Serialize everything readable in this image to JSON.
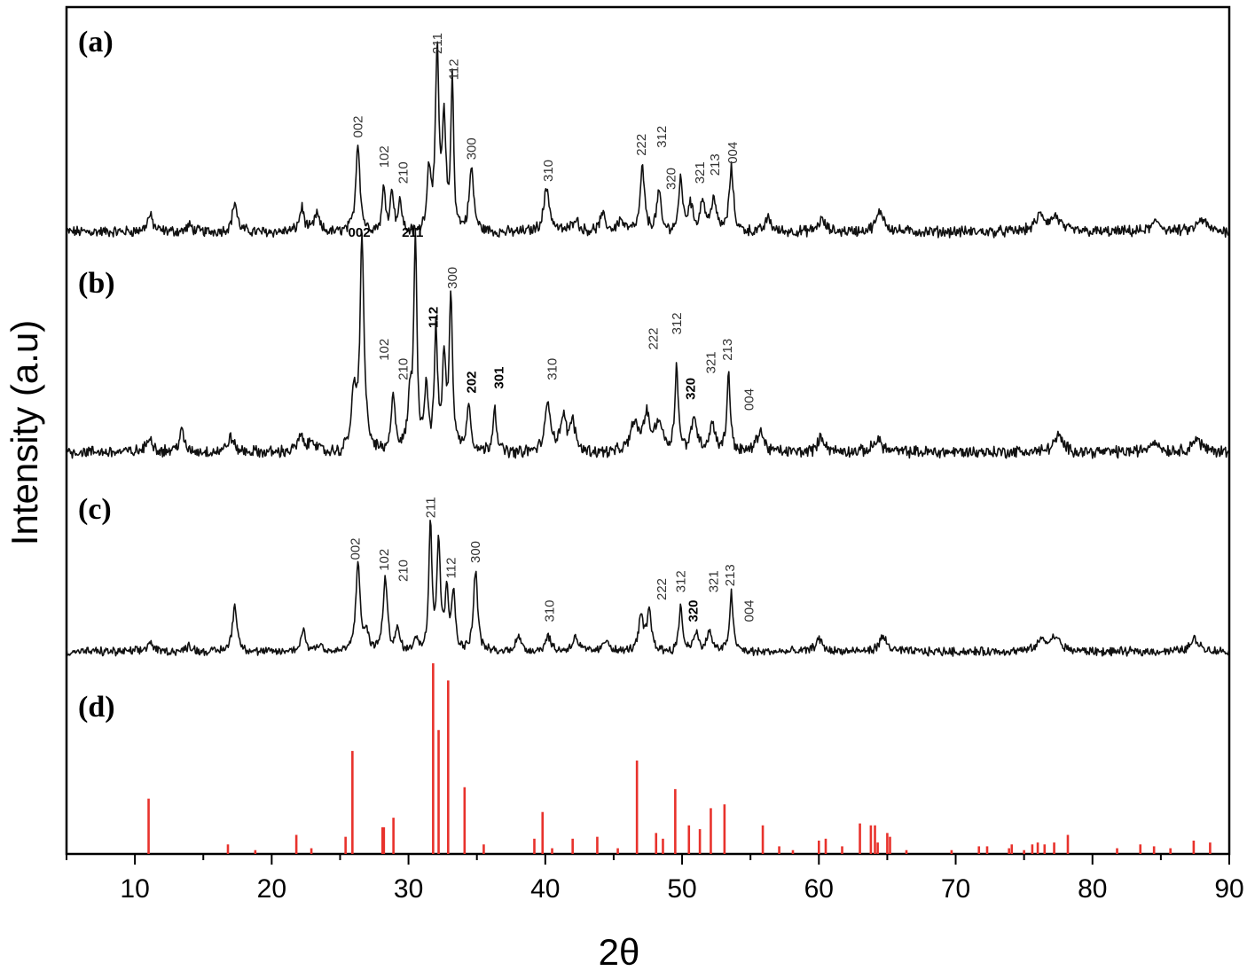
{
  "chart_data": {
    "type": "line",
    "xlabel": "2θ",
    "ylabel": "Intensity (a.u)",
    "xlim": [
      5,
      90
    ],
    "xticks": [
      10,
      20,
      30,
      40,
      50,
      60,
      70,
      80,
      90
    ],
    "grid": false,
    "panels": [
      {
        "label": "(a)",
        "baseline": 0.03,
        "peaks": [
          {
            "x": 11.1,
            "h": 0.08,
            "w": 0.25
          },
          {
            "x": 14.0,
            "h": 0.03,
            "w": 0.25
          },
          {
            "x": 17.3,
            "h": 0.15,
            "w": 0.2
          },
          {
            "x": 22.2,
            "h": 0.12,
            "w": 0.2
          },
          {
            "x": 23.3,
            "h": 0.09,
            "w": 0.2
          },
          {
            "x": 26.3,
            "h": 0.45,
            "w": 0.18
          },
          {
            "x": 28.2,
            "h": 0.22,
            "w": 0.15
          },
          {
            "x": 28.8,
            "h": 0.2,
            "w": 0.15
          },
          {
            "x": 29.4,
            "h": 0.15,
            "w": 0.15
          },
          {
            "x": 31.5,
            "h": 0.3,
            "w": 0.18
          },
          {
            "x": 32.1,
            "h": 0.88,
            "w": 0.15
          },
          {
            "x": 32.6,
            "h": 0.52,
            "w": 0.15
          },
          {
            "x": 33.2,
            "h": 0.75,
            "w": 0.12
          },
          {
            "x": 34.6,
            "h": 0.32,
            "w": 0.2
          },
          {
            "x": 40.1,
            "h": 0.22,
            "w": 0.25
          },
          {
            "x": 42.2,
            "h": 0.07,
            "w": 0.25
          },
          {
            "x": 44.2,
            "h": 0.08,
            "w": 0.25
          },
          {
            "x": 45.5,
            "h": 0.06,
            "w": 0.25
          },
          {
            "x": 47.1,
            "h": 0.32,
            "w": 0.18
          },
          {
            "x": 48.3,
            "h": 0.2,
            "w": 0.18
          },
          {
            "x": 49.9,
            "h": 0.28,
            "w": 0.15
          },
          {
            "x": 50.6,
            "h": 0.14,
            "w": 0.2
          },
          {
            "x": 51.5,
            "h": 0.16,
            "w": 0.2
          },
          {
            "x": 52.3,
            "h": 0.17,
            "w": 0.2
          },
          {
            "x": 53.6,
            "h": 0.32,
            "w": 0.18
          },
          {
            "x": 56.3,
            "h": 0.07,
            "w": 0.25
          },
          {
            "x": 60.2,
            "h": 0.06,
            "w": 0.3
          },
          {
            "x": 64.5,
            "h": 0.1,
            "w": 0.35
          },
          {
            "x": 76.2,
            "h": 0.08,
            "w": 0.4
          },
          {
            "x": 77.3,
            "h": 0.07,
            "w": 0.4
          },
          {
            "x": 84.7,
            "h": 0.05,
            "w": 0.4
          },
          {
            "x": 88.0,
            "h": 0.06,
            "w": 0.4
          }
        ],
        "annotations": [
          {
            "text": "002",
            "x": 26.3,
            "h": 0.5
          },
          {
            "text": "102",
            "x": 28.2,
            "h": 0.35
          },
          {
            "text": "210",
            "x": 29.6,
            "h": 0.27
          },
          {
            "text": "211",
            "x": 32.1,
            "h": 0.92
          },
          {
            "text": "112",
            "x": 33.3,
            "h": 0.79
          },
          {
            "text": "300",
            "x": 34.6,
            "h": 0.39
          },
          {
            "text": "310",
            "x": 40.2,
            "h": 0.28
          },
          {
            "text": "222",
            "x": 47.0,
            "h": 0.41
          },
          {
            "text": "312",
            "x": 48.5,
            "h": 0.45
          },
          {
            "text": "320",
            "x": 49.2,
            "h": 0.24
          },
          {
            "text": "321",
            "x": 51.3,
            "h": 0.27
          },
          {
            "text": "213",
            "x": 52.4,
            "h": 0.31
          },
          {
            "text": "004",
            "x": 53.7,
            "h": 0.37
          }
        ]
      },
      {
        "label": "(b)",
        "baseline": 0.03,
        "peaks": [
          {
            "x": 11.1,
            "h": 0.07,
            "w": 0.25
          },
          {
            "x": 13.4,
            "h": 0.1,
            "w": 0.2
          },
          {
            "x": 17.0,
            "h": 0.07,
            "w": 0.25
          },
          {
            "x": 22.1,
            "h": 0.07,
            "w": 0.25
          },
          {
            "x": 23.0,
            "h": 0.06,
            "w": 0.25
          },
          {
            "x": 26.0,
            "h": 0.25,
            "w": 0.2
          },
          {
            "x": 26.6,
            "h": 0.97,
            "w": 0.18
          },
          {
            "x": 28.9,
            "h": 0.27,
            "w": 0.18
          },
          {
            "x": 30.1,
            "h": 0.22,
            "w": 0.18
          },
          {
            "x": 30.5,
            "h": 0.97,
            "w": 0.14
          },
          {
            "x": 31.3,
            "h": 0.3,
            "w": 0.15
          },
          {
            "x": 32.0,
            "h": 0.55,
            "w": 0.14
          },
          {
            "x": 32.6,
            "h": 0.42,
            "w": 0.15
          },
          {
            "x": 33.1,
            "h": 0.72,
            "w": 0.14
          },
          {
            "x": 34.4,
            "h": 0.22,
            "w": 0.2
          },
          {
            "x": 36.3,
            "h": 0.22,
            "w": 0.15
          },
          {
            "x": 40.2,
            "h": 0.22,
            "w": 0.25
          },
          {
            "x": 41.3,
            "h": 0.15,
            "w": 0.25
          },
          {
            "x": 42.0,
            "h": 0.13,
            "w": 0.25
          },
          {
            "x": 46.5,
            "h": 0.13,
            "w": 0.3
          },
          {
            "x": 47.4,
            "h": 0.16,
            "w": 0.3
          },
          {
            "x": 48.3,
            "h": 0.14,
            "w": 0.3
          },
          {
            "x": 49.6,
            "h": 0.4,
            "w": 0.14
          },
          {
            "x": 50.9,
            "h": 0.16,
            "w": 0.25
          },
          {
            "x": 52.2,
            "h": 0.13,
            "w": 0.25
          },
          {
            "x": 53.4,
            "h": 0.37,
            "w": 0.14
          },
          {
            "x": 55.7,
            "h": 0.1,
            "w": 0.3
          },
          {
            "x": 60.2,
            "h": 0.07,
            "w": 0.3
          },
          {
            "x": 64.3,
            "h": 0.06,
            "w": 0.35
          },
          {
            "x": 77.5,
            "h": 0.07,
            "w": 0.4
          },
          {
            "x": 84.5,
            "h": 0.05,
            "w": 0.4
          },
          {
            "x": 87.6,
            "h": 0.06,
            "w": 0.4
          }
        ],
        "annotations": [
          {
            "text": "002",
            "x": 26.4,
            "h": 1.02,
            "bold": true,
            "horizontal": true
          },
          {
            "text": "211",
            "x": 30.3,
            "h": 1.02,
            "bold": true,
            "horizontal": true
          },
          {
            "text": "102",
            "x": 28.2,
            "h": 0.45
          },
          {
            "text": "210",
            "x": 29.6,
            "h": 0.36
          },
          {
            "text": "112",
            "x": 31.8,
            "h": 0.6,
            "bold": true
          },
          {
            "text": "300",
            "x": 33.2,
            "h": 0.78
          },
          {
            "text": "202",
            "x": 34.6,
            "h": 0.3,
            "bold": true
          },
          {
            "text": "301",
            "x": 36.6,
            "h": 0.32,
            "bold": true
          },
          {
            "text": "310",
            "x": 40.5,
            "h": 0.36
          },
          {
            "text": "222",
            "x": 47.9,
            "h": 0.5
          },
          {
            "text": "312",
            "x": 49.6,
            "h": 0.57
          },
          {
            "text": "320",
            "x": 50.6,
            "h": 0.27,
            "bold": true
          },
          {
            "text": "321",
            "x": 52.1,
            "h": 0.39
          },
          {
            "text": "213",
            "x": 53.3,
            "h": 0.45
          },
          {
            "text": "004",
            "x": 54.9,
            "h": 0.22
          }
        ]
      },
      {
        "label": "(c)",
        "baseline": 0.03,
        "peaks": [
          {
            "x": 11.1,
            "h": 0.06,
            "w": 0.25
          },
          {
            "x": 14.0,
            "h": 0.04,
            "w": 0.25
          },
          {
            "x": 17.3,
            "h": 0.3,
            "w": 0.2
          },
          {
            "x": 22.3,
            "h": 0.14,
            "w": 0.2
          },
          {
            "x": 23.5,
            "h": 0.05,
            "w": 0.25
          },
          {
            "x": 26.3,
            "h": 0.58,
            "w": 0.18
          },
          {
            "x": 26.9,
            "h": 0.12,
            "w": 0.18
          },
          {
            "x": 28.3,
            "h": 0.48,
            "w": 0.18
          },
          {
            "x": 29.2,
            "h": 0.13,
            "w": 0.2
          },
          {
            "x": 30.5,
            "h": 0.1,
            "w": 0.2
          },
          {
            "x": 31.6,
            "h": 0.85,
            "w": 0.13
          },
          {
            "x": 32.2,
            "h": 0.7,
            "w": 0.15
          },
          {
            "x": 32.8,
            "h": 0.4,
            "w": 0.15
          },
          {
            "x": 33.3,
            "h": 0.38,
            "w": 0.15
          },
          {
            "x": 34.9,
            "h": 0.53,
            "w": 0.18
          },
          {
            "x": 38.0,
            "h": 0.1,
            "w": 0.25
          },
          {
            "x": 40.2,
            "h": 0.1,
            "w": 0.25
          },
          {
            "x": 42.2,
            "h": 0.1,
            "w": 0.25
          },
          {
            "x": 44.5,
            "h": 0.08,
            "w": 0.25
          },
          {
            "x": 47.0,
            "h": 0.22,
            "w": 0.2
          },
          {
            "x": 47.6,
            "h": 0.25,
            "w": 0.2
          },
          {
            "x": 49.9,
            "h": 0.3,
            "w": 0.15
          },
          {
            "x": 51.0,
            "h": 0.13,
            "w": 0.2
          },
          {
            "x": 52.0,
            "h": 0.14,
            "w": 0.2
          },
          {
            "x": 53.6,
            "h": 0.38,
            "w": 0.15
          },
          {
            "x": 60.0,
            "h": 0.08,
            "w": 0.3
          },
          {
            "x": 64.7,
            "h": 0.09,
            "w": 0.35
          },
          {
            "x": 76.3,
            "h": 0.07,
            "w": 0.4
          },
          {
            "x": 77.3,
            "h": 0.09,
            "w": 0.4
          },
          {
            "x": 87.5,
            "h": 0.08,
            "w": 0.4
          }
        ],
        "annotations": [
          {
            "text": "002",
            "x": 26.1,
            "h": 0.62
          },
          {
            "text": "102",
            "x": 28.2,
            "h": 0.55
          },
          {
            "text": "210",
            "x": 29.6,
            "h": 0.48
          },
          {
            "text": "211",
            "x": 31.6,
            "h": 0.89
          },
          {
            "text": "112",
            "x": 33.1,
            "h": 0.5
          },
          {
            "text": "300",
            "x": 34.9,
            "h": 0.6
          },
          {
            "text": "310",
            "x": 40.3,
            "h": 0.22
          },
          {
            "text": "222",
            "x": 48.5,
            "h": 0.36
          },
          {
            "text": "312",
            "x": 49.9,
            "h": 0.41
          },
          {
            "text": "320",
            "x": 50.8,
            "h": 0.22,
            "bold": true
          },
          {
            "text": "321",
            "x": 52.3,
            "h": 0.41
          },
          {
            "text": "213",
            "x": 53.5,
            "h": 0.45
          },
          {
            "text": "004",
            "x": 54.9,
            "h": 0.22
          }
        ]
      },
      {
        "label": "(d)",
        "type": "bar",
        "color": "#e8322c",
        "sticks": [
          {
            "x": 11.0,
            "h": 0.29
          },
          {
            "x": 16.8,
            "h": 0.05
          },
          {
            "x": 18.8,
            "h": 0.02
          },
          {
            "x": 21.8,
            "h": 0.1
          },
          {
            "x": 22.9,
            "h": 0.03
          },
          {
            "x": 25.4,
            "h": 0.09
          },
          {
            "x": 25.9,
            "h": 0.54
          },
          {
            "x": 28.1,
            "h": 0.14
          },
          {
            "x": 28.2,
            "h": 0.14
          },
          {
            "x": 28.9,
            "h": 0.19
          },
          {
            "x": 31.8,
            "h": 1.0
          },
          {
            "x": 32.2,
            "h": 0.65
          },
          {
            "x": 32.9,
            "h": 0.91
          },
          {
            "x": 34.1,
            "h": 0.35
          },
          {
            "x": 35.5,
            "h": 0.05
          },
          {
            "x": 39.2,
            "h": 0.08
          },
          {
            "x": 39.8,
            "h": 0.22
          },
          {
            "x": 40.5,
            "h": 0.03
          },
          {
            "x": 42.0,
            "h": 0.08
          },
          {
            "x": 43.8,
            "h": 0.09
          },
          {
            "x": 45.3,
            "h": 0.03
          },
          {
            "x": 46.7,
            "h": 0.49
          },
          {
            "x": 48.1,
            "h": 0.11
          },
          {
            "x": 48.6,
            "h": 0.08
          },
          {
            "x": 49.5,
            "h": 0.34
          },
          {
            "x": 50.5,
            "h": 0.15
          },
          {
            "x": 51.3,
            "h": 0.13
          },
          {
            "x": 52.1,
            "h": 0.24
          },
          {
            "x": 53.1,
            "h": 0.26
          },
          {
            "x": 55.9,
            "h": 0.15
          },
          {
            "x": 57.1,
            "h": 0.04
          },
          {
            "x": 58.1,
            "h": 0.02
          },
          {
            "x": 60.0,
            "h": 0.07
          },
          {
            "x": 60.5,
            "h": 0.08
          },
          {
            "x": 61.7,
            "h": 0.04
          },
          {
            "x": 63.0,
            "h": 0.16
          },
          {
            "x": 63.8,
            "h": 0.15
          },
          {
            "x": 64.1,
            "h": 0.15
          },
          {
            "x": 64.3,
            "h": 0.06
          },
          {
            "x": 65.0,
            "h": 0.11
          },
          {
            "x": 65.2,
            "h": 0.09
          },
          {
            "x": 66.4,
            "h": 0.02
          },
          {
            "x": 69.7,
            "h": 0.02
          },
          {
            "x": 71.7,
            "h": 0.04
          },
          {
            "x": 72.3,
            "h": 0.04
          },
          {
            "x": 73.9,
            "h": 0.03
          },
          {
            "x": 74.1,
            "h": 0.05
          },
          {
            "x": 75.0,
            "h": 0.02
          },
          {
            "x": 75.6,
            "h": 0.05
          },
          {
            "x": 76.0,
            "h": 0.06
          },
          {
            "x": 76.5,
            "h": 0.05
          },
          {
            "x": 77.2,
            "h": 0.06
          },
          {
            "x": 78.2,
            "h": 0.1
          },
          {
            "x": 81.8,
            "h": 0.03
          },
          {
            "x": 83.5,
            "h": 0.05
          },
          {
            "x": 84.5,
            "h": 0.04
          },
          {
            "x": 85.7,
            "h": 0.03
          },
          {
            "x": 87.4,
            "h": 0.07
          },
          {
            "x": 88.6,
            "h": 0.06
          }
        ]
      }
    ]
  }
}
